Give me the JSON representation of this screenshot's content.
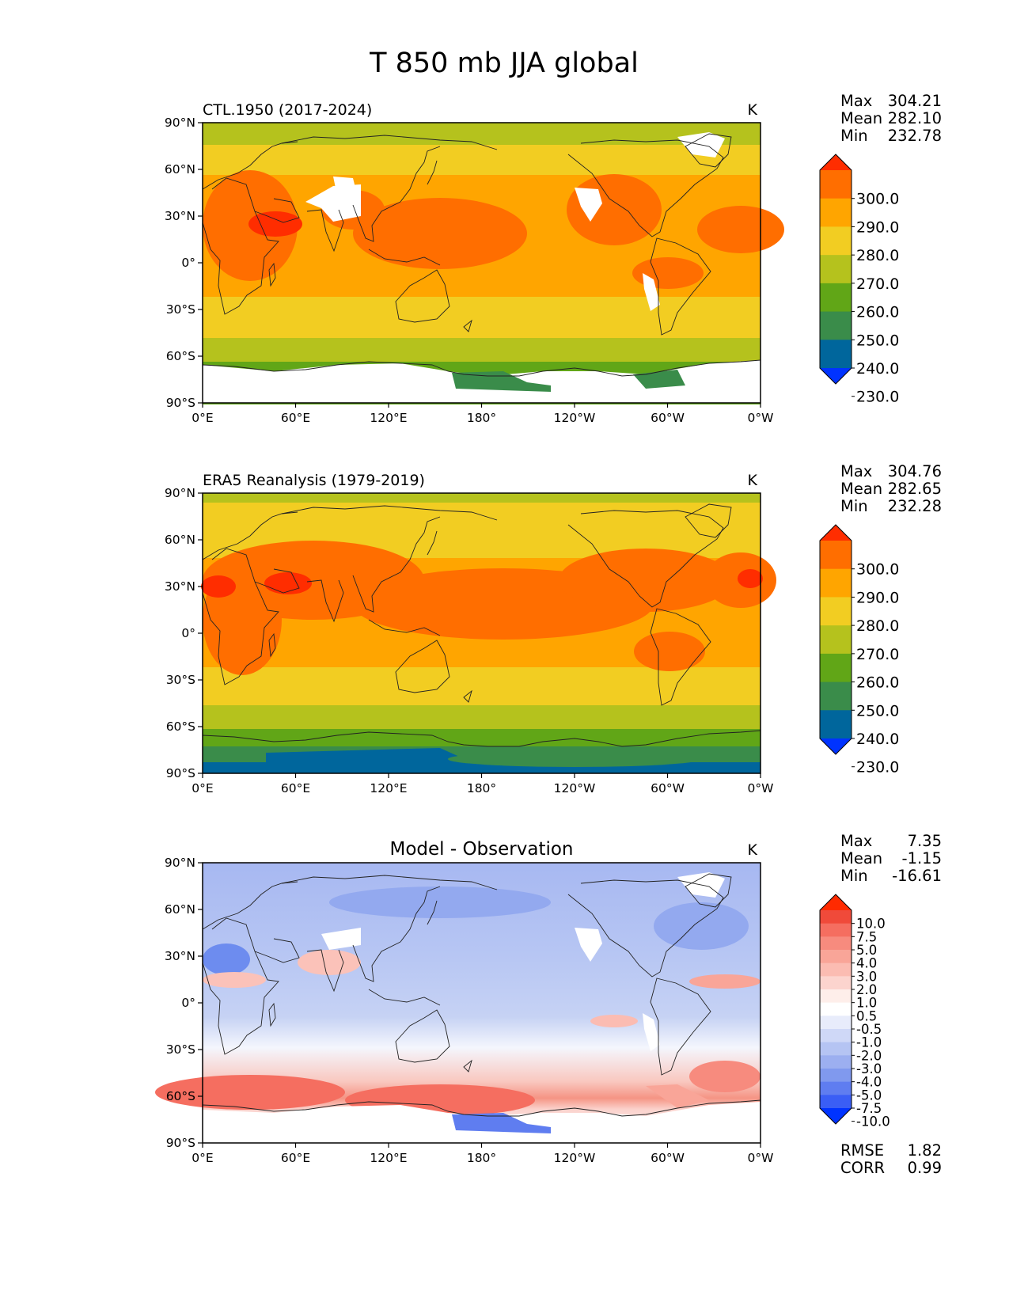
{
  "figure_title": "T 850 mb JJA global",
  "lat_ticks": [
    "90°N",
    "60°N",
    "30°N",
    "0°",
    "30°S",
    "60°S",
    "90°S"
  ],
  "lon_ticks": [
    "0°E",
    "60°E",
    "120°E",
    "180°",
    "120°W",
    "60°W",
    "0°W"
  ],
  "panels": [
    {
      "title_left": "CTL.1950 (2017-2024)",
      "title_center": "",
      "units": "K",
      "stats": [
        {
          "label": "Max",
          "value": "304.21"
        },
        {
          "label": "Mean",
          "value": "282.10"
        },
        {
          "label": "Min",
          "value": "232.78"
        }
      ],
      "colorbar": {
        "labels": [
          "300.0",
          "290.0",
          "280.0",
          "270.0",
          "260.0",
          "250.0",
          "240.0",
          "230.0"
        ],
        "colors": [
          "#ff2d00",
          "#ff6e00",
          "#ffa500",
          "#f2cd22",
          "#b5c21d",
          "#61a617",
          "#3a8c4a",
          "#00669c",
          "#0033ff"
        ]
      }
    },
    {
      "title_left": "ERA5 Reanalysis (1979-2019)",
      "title_center": "",
      "units": "K",
      "stats": [
        {
          "label": "Max",
          "value": "304.76"
        },
        {
          "label": "Mean",
          "value": "282.65"
        },
        {
          "label": "Min",
          "value": "232.28"
        }
      ],
      "colorbar": {
        "labels": [
          "300.0",
          "290.0",
          "280.0",
          "270.0",
          "260.0",
          "250.0",
          "240.0",
          "230.0"
        ],
        "colors": [
          "#ff2d00",
          "#ff6e00",
          "#ffa500",
          "#f2cd22",
          "#b5c21d",
          "#61a617",
          "#3a8c4a",
          "#00669c",
          "#0033ff"
        ]
      }
    },
    {
      "title_left": "",
      "title_center": "Model - Observation",
      "units": "K",
      "stats": [
        {
          "label": "Max",
          "value": "7.35"
        },
        {
          "label": "Mean",
          "value": "-1.15"
        },
        {
          "label": "Min",
          "value": "-16.61"
        }
      ],
      "colorbar": {
        "labels": [
          "10.0",
          "7.5",
          "5.0",
          "4.0",
          "3.0",
          "2.0",
          "1.0",
          "0.5",
          "-0.5",
          "-1.0",
          "-2.0",
          "-3.0",
          "-4.0",
          "-5.0",
          "-7.5",
          "-10.0"
        ],
        "colors": [
          "#ff2a00",
          "#f04a3a",
          "#f56e60",
          "#f78b7e",
          "#f9a598",
          "#fbbcb2",
          "#fcd4ce",
          "#feeeea",
          "#ffffff",
          "#e8ecfb",
          "#cfd8f7",
          "#b5c4f3",
          "#9caff0",
          "#8099ee",
          "#5f7df0",
          "#3a5ef5",
          "#0033ff"
        ]
      },
      "metrics": [
        {
          "label": "RMSE",
          "value": "1.82"
        },
        {
          "label": "CORR",
          "value": "0.99"
        }
      ]
    }
  ],
  "chart_data": [
    {
      "type": "heatmap",
      "title": "CTL.1950 (2017-2024)",
      "units": "K",
      "xlim": [
        0,
        360
      ],
      "ylim": [
        -90,
        90
      ],
      "x_ticks": [
        "0°E",
        "60°E",
        "120°E",
        "180°",
        "120°W",
        "60°W",
        "0°W"
      ],
      "y_ticks": [
        "90°N",
        "60°N",
        "30°N",
        "0°",
        "30°S",
        "60°S",
        "90°S"
      ],
      "colorbar_levels": [
        230,
        240,
        250,
        260,
        270,
        280,
        290,
        300
      ],
      "zonal_band_values_K": [
        {
          "lat_range": [
            75,
            90
          ],
          "value": 265
        },
        {
          "lat_range": [
            45,
            75
          ],
          "value": 275
        },
        {
          "lat_range": [
            -15,
            45
          ],
          "value": 285
        },
        {
          "lat_range": [
            -45,
            -15
          ],
          "value": 275
        },
        {
          "lat_range": [
            -70,
            -45
          ],
          "value": 265
        },
        {
          "lat_range": [
            -90,
            -70
          ],
          "value": 245
        }
      ],
      "stats": {
        "max": 304.21,
        "mean": 282.1,
        "min": 232.78
      }
    },
    {
      "type": "heatmap",
      "title": "ERA5 Reanalysis (1979-2019)",
      "units": "K",
      "xlim": [
        0,
        360
      ],
      "ylim": [
        -90,
        90
      ],
      "x_ticks": [
        "0°E",
        "60°E",
        "120°E",
        "180°",
        "120°W",
        "60°W",
        "0°W"
      ],
      "y_ticks": [
        "90°N",
        "60°N",
        "30°N",
        "0°",
        "30°S",
        "60°S",
        "90°S"
      ],
      "colorbar_levels": [
        230,
        240,
        250,
        260,
        270,
        280,
        290,
        300
      ],
      "zonal_band_values_K": [
        {
          "lat_range": [
            75,
            90
          ],
          "value": 275
        },
        {
          "lat_range": [
            45,
            75
          ],
          "value": 275
        },
        {
          "lat_range": [
            -15,
            45
          ],
          "value": 295
        },
        {
          "lat_range": [
            -45,
            -15
          ],
          "value": 275
        },
        {
          "lat_range": [
            -70,
            -45
          ],
          "value": 265
        },
        {
          "lat_range": [
            -90,
            -70
          ],
          "value": 235
        }
      ],
      "stats": {
        "max": 304.76,
        "mean": 282.65,
        "min": 232.28
      }
    },
    {
      "type": "heatmap",
      "title": "Model - Observation",
      "units": "K",
      "xlim": [
        0,
        360
      ],
      "ylim": [
        -90,
        90
      ],
      "x_ticks": [
        "0°E",
        "60°E",
        "120°E",
        "180°",
        "120°W",
        "60°W",
        "0°W"
      ],
      "y_ticks": [
        "90°N",
        "60°N",
        "30°N",
        "0°",
        "30°S",
        "60°S",
        "90°S"
      ],
      "colorbar_levels": [
        -10,
        -7.5,
        -5,
        -4,
        -3,
        -2,
        -1,
        -0.5,
        0.5,
        1,
        2,
        3,
        4,
        5,
        7.5,
        10
      ],
      "zonal_band_values_K": [
        {
          "lat_range": [
            60,
            90
          ],
          "value": -2.5
        },
        {
          "lat_range": [
            -30,
            60
          ],
          "value": -1.5
        },
        {
          "lat_range": [
            -50,
            -30
          ],
          "value": 0
        },
        {
          "lat_range": [
            -72,
            -50
          ],
          "value": 3
        },
        {
          "lat_range": [
            -90,
            -72
          ],
          "value": 0
        }
      ],
      "stats": {
        "max": 7.35,
        "mean": -1.15,
        "min": -16.61
      },
      "metrics": {
        "RMSE": 1.82,
        "CORR": 0.99
      }
    }
  ]
}
